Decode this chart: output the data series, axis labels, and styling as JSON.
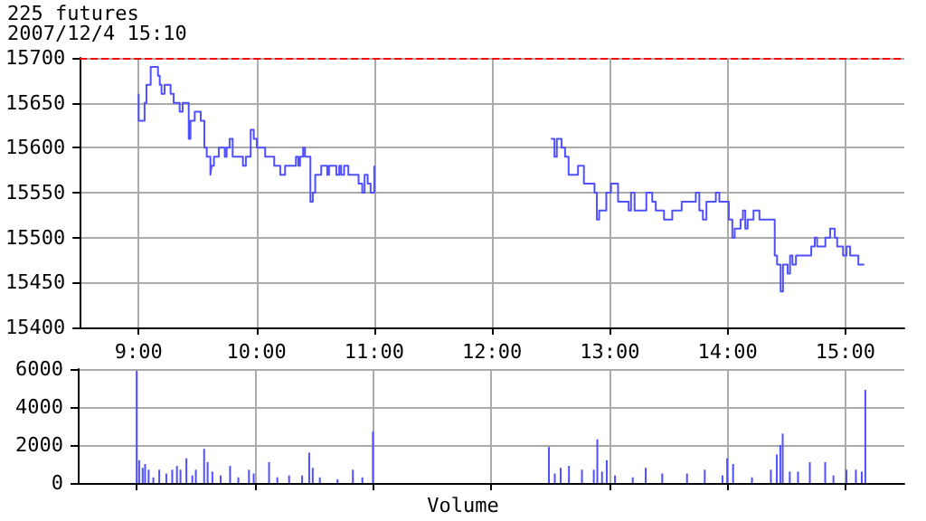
{
  "chart_data": [
    {
      "type": "step",
      "title": "225 futures",
      "subtitle": "2007/12/4 15:10",
      "series": [
        {
          "color": "#5050ff",
          "x": [
            9.0,
            9.0,
            9.05,
            9.066,
            9.102,
            9.164,
            9.179,
            9.194,
            9.22,
            9.271,
            9.297,
            9.348,
            9.373,
            9.425,
            9.44,
            9.476,
            9.527,
            9.558,
            9.578,
            9.609,
            9.619,
            9.639,
            9.68,
            9.731,
            9.747,
            9.772,
            9.798,
            9.885,
            9.91,
            9.951,
            9.977,
            10.003,
            10.074,
            10.151,
            10.202,
            10.243,
            10.335,
            10.355,
            10.37,
            10.396,
            10.412,
            10.458,
            10.478,
            10.499,
            10.55,
            10.601,
            10.616,
            10.678,
            10.703,
            10.719,
            10.744,
            10.78,
            10.867,
            10.898,
            10.918,
            10.944,
            10.969,
            11.0
          ],
          "values": [
            15660,
            15630,
            15650,
            15670,
            15690,
            15680,
            15670,
            15660,
            15670,
            15660,
            15650,
            15640,
            15650,
            15610,
            15630,
            15640,
            15630,
            15600,
            15590,
            15570,
            15580,
            15590,
            15600,
            15590,
            15600,
            15610,
            15590,
            15580,
            15590,
            15620,
            15610,
            15600,
            15590,
            15580,
            15570,
            15580,
            15590,
            15580,
            15590,
            15600,
            15590,
            15540,
            15550,
            15570,
            15580,
            15570,
            15580,
            15570,
            15580,
            15570,
            15580,
            15570,
            15560,
            15550,
            15570,
            15560,
            15550,
            15580
          ]
        },
        {
          "color": "#5050ff",
          "x": [
            12.5,
            12.53,
            12.55,
            12.59,
            12.62,
            12.65,
            12.73,
            12.78,
            12.87,
            12.89,
            12.91,
            12.97,
            13.01,
            13.04,
            13.07,
            13.16,
            13.18,
            13.21,
            13.31,
            13.36,
            13.39,
            13.46,
            13.53,
            13.61,
            13.73,
            13.76,
            13.79,
            13.82,
            13.9,
            13.93,
            14.01,
            14.04,
            14.06,
            14.11,
            14.13,
            14.15,
            14.17,
            14.22,
            14.27,
            14.36,
            14.4,
            14.42,
            14.45,
            14.46,
            14.47,
            14.51,
            14.53,
            14.55,
            14.58,
            14.71,
            14.74,
            14.76,
            14.83,
            14.87,
            14.91,
            14.93,
            14.98,
            15.01,
            15.04,
            15.11,
            15.16
          ],
          "values": [
            15610,
            15590,
            15610,
            15600,
            15590,
            15570,
            15580,
            15560,
            15550,
            15520,
            15530,
            15550,
            15560,
            15560,
            15540,
            15530,
            15550,
            15530,
            15550,
            15540,
            15530,
            15520,
            15530,
            15540,
            15550,
            15530,
            15520,
            15540,
            15550,
            15540,
            15520,
            15500,
            15510,
            15520,
            15530,
            15510,
            15520,
            15530,
            15520,
            15520,
            15480,
            15470,
            15440,
            15440,
            15470,
            15460,
            15480,
            15470,
            15480,
            15490,
            15500,
            15490,
            15500,
            15510,
            15500,
            15490,
            15480,
            15490,
            15480,
            15470,
            15470
          ]
        }
      ],
      "xlim": [
        8.5,
        15.5
      ],
      "xticks": [
        {
          "value": 9,
          "label": "9:00"
        },
        {
          "value": 10,
          "label": "10:00"
        },
        {
          "value": 11,
          "label": "11:00"
        },
        {
          "value": 12,
          "label": "12:00"
        },
        {
          "value": 13,
          "label": "13:00"
        },
        {
          "value": 14,
          "label": "14:00"
        },
        {
          "value": 15,
          "label": "15:00"
        }
      ],
      "ylim": [
        15400,
        15700
      ],
      "yticks": [
        15400,
        15450,
        15500,
        15550,
        15600,
        15650,
        15700
      ],
      "ref_lines": [
        {
          "axis": "y",
          "value": 15700,
          "color": "#ff0000",
          "line_style": "dashed"
        }
      ],
      "grid": true,
      "marker": "none"
    },
    {
      "type": "bar",
      "annotations": [
        "Volume"
      ],
      "x": [
        9.0,
        9.02,
        9.05,
        9.07,
        9.1,
        9.14,
        9.19,
        9.25,
        9.3,
        9.34,
        9.37,
        9.42,
        9.47,
        9.5,
        9.57,
        9.6,
        9.64,
        9.71,
        9.79,
        9.86,
        9.95,
        9.99,
        10.12,
        10.19,
        10.29,
        10.4,
        10.46,
        10.49,
        10.55,
        10.7,
        10.83,
        10.91,
        11.0,
        12.49,
        12.54,
        12.59,
        12.66,
        12.77,
        12.87,
        12.9,
        12.94,
        12.98,
        13.05,
        13.2,
        13.31,
        13.45,
        13.66,
        13.81,
        13.96,
        14.0,
        14.05,
        14.21,
        14.37,
        14.42,
        14.45,
        14.47,
        14.53,
        14.6,
        14.7,
        14.83,
        14.9,
        15.01,
        15.09,
        15.14,
        15.17
      ],
      "series": [
        {
          "color": "#5050ff",
          "values": [
            5900,
            1200,
            800,
            1000,
            700,
            300,
            700,
            500,
            700,
            900,
            700,
            1300,
            400,
            700,
            1800,
            1100,
            600,
            400,
            900,
            300,
            700,
            500,
            1100,
            300,
            400,
            400,
            1600,
            800,
            300,
            200,
            700,
            300,
            2700,
            1900,
            500,
            800,
            900,
            700,
            700,
            2300,
            600,
            1200,
            400,
            300,
            800,
            500,
            500,
            700,
            400,
            1300,
            1000,
            300,
            700,
            1500,
            2000,
            2600,
            600,
            600,
            1100,
            1100,
            400,
            700,
            700,
            600,
            4900
          ]
        }
      ],
      "xlim": [
        8.5,
        15.5
      ],
      "xticks": [
        9,
        10,
        11,
        12,
        13,
        14,
        15
      ],
      "ylim": [
        0,
        6000
      ],
      "yticks": [
        0,
        2000,
        4000,
        6000
      ],
      "tick_labels": "y",
      "grid": true
    }
  ]
}
